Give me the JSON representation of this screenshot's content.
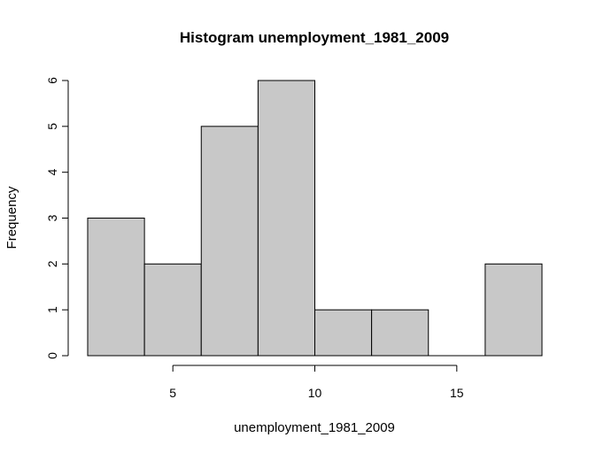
{
  "chart_data": {
    "type": "bar",
    "title": "Histogram unemployment_1981_2009",
    "xlabel": "unemployment_1981_2009",
    "ylabel": "Frequency",
    "bins": [
      {
        "from": 2,
        "to": 4,
        "count": 3
      },
      {
        "from": 4,
        "to": 6,
        "count": 2
      },
      {
        "from": 6,
        "to": 8,
        "count": 5
      },
      {
        "from": 8,
        "to": 10,
        "count": 6
      },
      {
        "from": 10,
        "to": 12,
        "count": 1
      },
      {
        "from": 12,
        "to": 14,
        "count": 1
      },
      {
        "from": 14,
        "to": 16,
        "count": 0
      },
      {
        "from": 16,
        "to": 18,
        "count": 2
      }
    ],
    "xticks": [
      "5",
      "10",
      "15"
    ],
    "yticks": [
      "0",
      "1",
      "2",
      "3",
      "4",
      "5",
      "6"
    ],
    "xlim": [
      2,
      18
    ],
    "ylim": [
      0,
      6
    ],
    "grid": false,
    "bar_color": "#c8c8c8"
  }
}
